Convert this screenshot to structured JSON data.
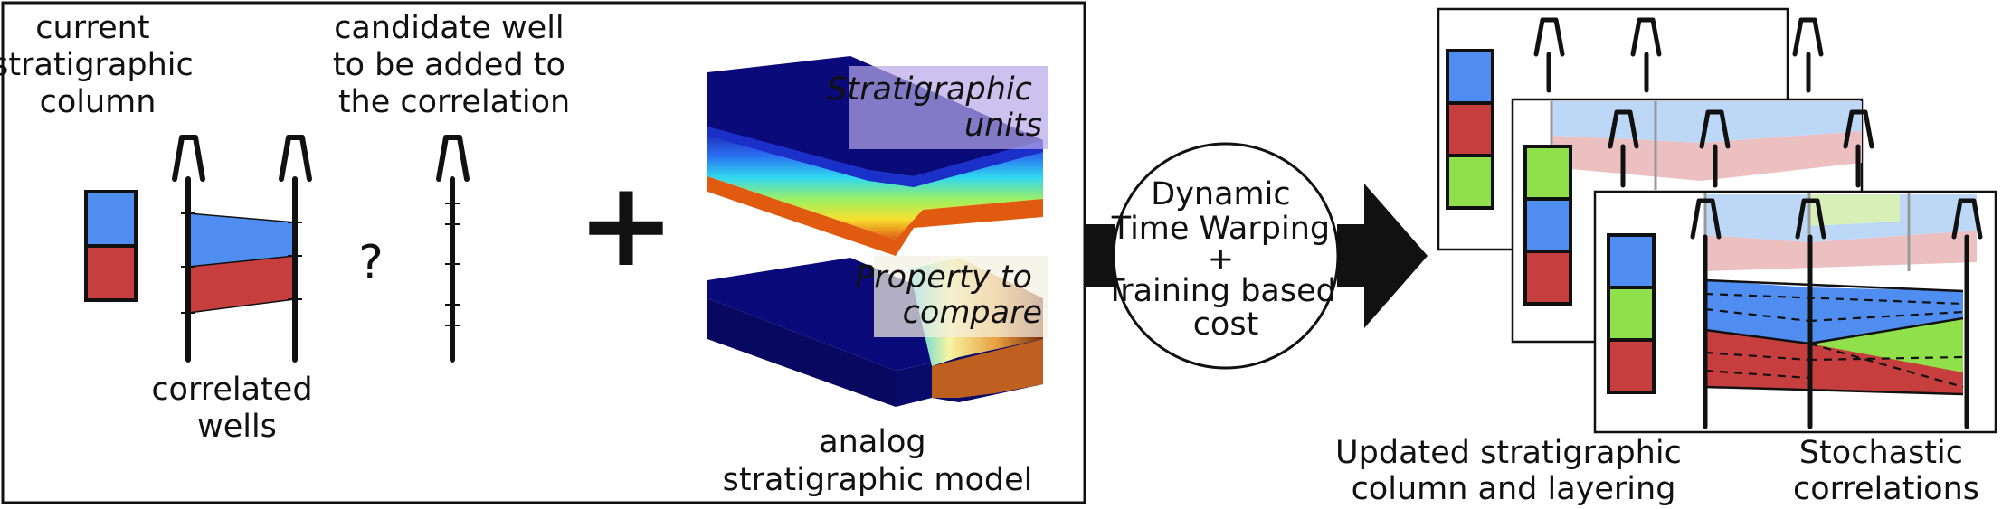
{
  "left_panel": {
    "current_column_label": [
      "current",
      "stratigraphic",
      "column"
    ],
    "correlated_wells_label": [
      "correlated",
      "wells"
    ],
    "candidate_well_label": [
      "candidate well",
      "to be added to",
      "the correlation"
    ],
    "question_mark": "?",
    "plus_sign": "+",
    "model_units_label": [
      "Stratigraphic",
      "units"
    ],
    "model_property_label": [
      "Property to",
      "compare"
    ],
    "analog_model_label": [
      "analog",
      "stratigraphic model"
    ]
  },
  "process": {
    "circle_label": [
      "Dynamic",
      "Time Warping",
      "+",
      "Training based",
      "cost"
    ]
  },
  "right_panel": {
    "updated_label": [
      "Updated stratigraphic",
      "column and layering"
    ],
    "stochastic_label": [
      "Stochastic",
      "correlations"
    ]
  },
  "colors": {
    "blue": "#4f8ef0",
    "red": "#c73e3e",
    "green": "#8fe04a",
    "dark_blue": "#0a0a7a",
    "outline": "#111111"
  }
}
